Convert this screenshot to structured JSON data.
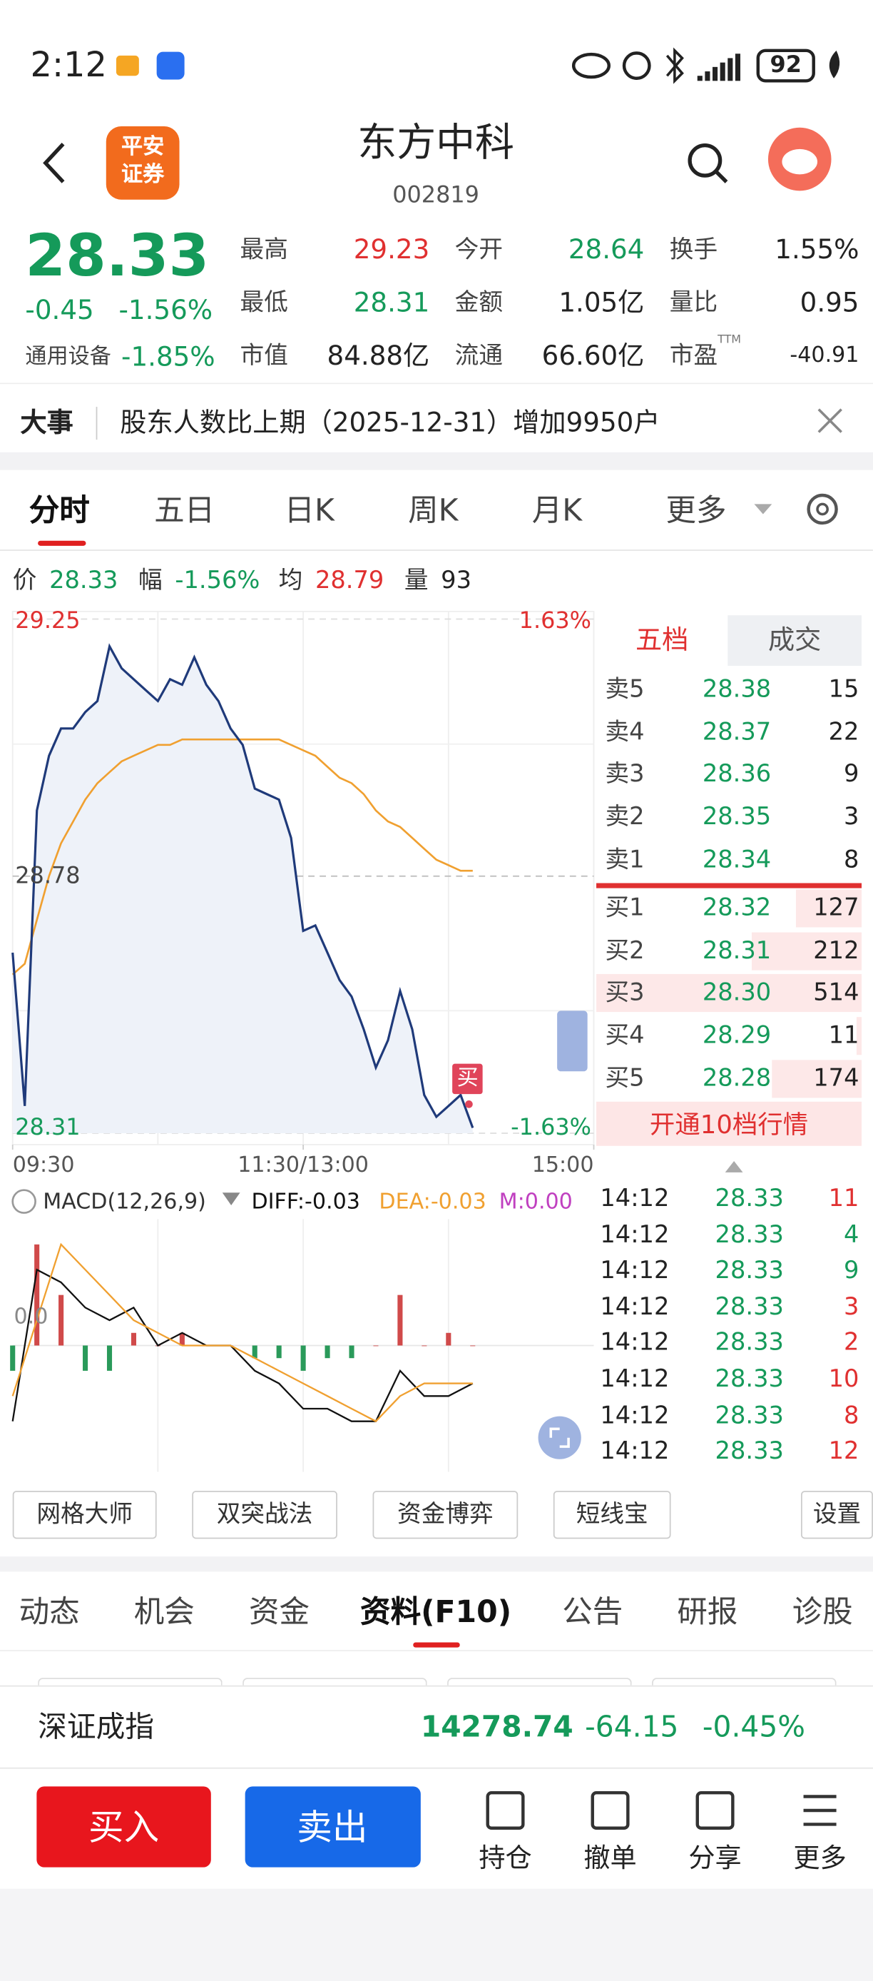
{
  "status_bar": {
    "time": "2:12",
    "battery": "92"
  },
  "header": {
    "logo": [
      "平安",
      "证券"
    ],
    "title": "东方中科",
    "code": "002819"
  },
  "quote": {
    "price": "28.33",
    "change": "-0.45",
    "change_pct": "-1.56%",
    "sector": "通用设备",
    "sector_change": "-1.85%",
    "color_up": "#e03030",
    "color_down": "#159a5a",
    "stats": [
      {
        "label": "最高",
        "value": "29.23",
        "color": "#e03030"
      },
      {
        "label": "今开",
        "value": "28.64",
        "color": "#159a5a"
      },
      {
        "label": "换手",
        "value": "1.55%",
        "color": "#222222"
      },
      {
        "label": "最低",
        "value": "28.31",
        "color": "#159a5a"
      },
      {
        "label": "金额",
        "value": "1.05亿",
        "color": "#222222"
      },
      {
        "label": "量比",
        "value": "0.95",
        "color": "#222222"
      },
      {
        "label": "市值",
        "value": "84.88亿",
        "color": "#222222"
      },
      {
        "label": "流通",
        "value": "66.60亿",
        "color": "#222222"
      },
      {
        "label": "市盈",
        "label_sup": "TTM",
        "value": "-40.91",
        "color": "#222222"
      }
    ]
  },
  "event": {
    "tag": "大事",
    "text": "股东人数比上期（2025-12-31）增加9950户"
  },
  "period_tabs": {
    "items": [
      "分时",
      "五日",
      "日K",
      "周K",
      "月K",
      "更多"
    ],
    "active": 0
  },
  "price_info": [
    {
      "label": "价",
      "value": "28.33",
      "color": "#159a5a"
    },
    {
      "label": "幅",
      "value": "-1.56%",
      "color": "#159a5a"
    },
    {
      "label": "均",
      "value": "28.79",
      "color": "#e03030"
    },
    {
      "label": "量",
      "value": "93",
      "color": "#222222"
    }
  ],
  "intraday_chart": {
    "type": "line",
    "x": [
      0,
      5,
      10,
      15,
      20,
      25,
      30,
      35,
      40,
      45,
      50,
      55,
      60,
      65,
      70,
      75,
      80,
      85,
      90,
      95,
      100,
      105,
      110,
      115,
      120,
      125,
      130,
      135,
      140,
      145,
      150,
      155,
      160,
      165,
      170,
      175,
      180,
      185,
      190
    ],
    "price": [
      28.64,
      28.36,
      28.9,
      29.0,
      29.05,
      29.05,
      29.08,
      29.1,
      29.2,
      29.16,
      29.14,
      29.12,
      29.1,
      29.14,
      29.13,
      29.18,
      29.13,
      29.1,
      29.05,
      29.02,
      28.94,
      28.93,
      28.92,
      28.85,
      28.68,
      28.69,
      28.64,
      28.59,
      28.56,
      28.5,
      28.43,
      28.48,
      28.57,
      28.5,
      28.38,
      28.34,
      28.36,
      28.38,
      28.32
    ],
    "average": [
      28.6,
      28.62,
      28.7,
      28.78,
      28.84,
      28.88,
      28.92,
      28.95,
      28.97,
      28.99,
      29.0,
      29.01,
      29.02,
      29.02,
      29.03,
      29.03,
      29.03,
      29.03,
      29.03,
      29.03,
      29.03,
      29.03,
      29.03,
      29.02,
      29.01,
      29.0,
      28.98,
      28.96,
      28.95,
      28.93,
      28.9,
      28.88,
      28.87,
      28.85,
      28.83,
      28.81,
      28.8,
      28.79,
      28.79
    ],
    "price_color": "#1f3a7a",
    "average_color": "#f0a030",
    "xlim": [
      0,
      240
    ],
    "xticks": [
      {
        "value": 0,
        "label": "09:30"
      },
      {
        "value": 120,
        "label": "11:30/13:00"
      },
      {
        "value": 240,
        "label": "15:00"
      }
    ],
    "ylim": [
      28.31,
      29.25
    ],
    "yticks": [
      29.25,
      28.78,
      28.31
    ],
    "y2lim": [
      -1.63,
      1.63
    ],
    "y2ticks": [
      {
        "value": 1.63,
        "label": "1.63%"
      },
      {
        "value": -1.63,
        "label": "-1.63%"
      }
    ],
    "annotation": "买"
  },
  "order_book": {
    "tabs": [
      "五档",
      "成交"
    ],
    "active": 0,
    "asks": [
      {
        "label": "卖5",
        "price": "28.38",
        "volume": 15
      },
      {
        "label": "卖4",
        "price": "28.37",
        "volume": 22
      },
      {
        "label": "卖3",
        "price": "28.36",
        "volume": 9
      },
      {
        "label": "卖2",
        "price": "28.35",
        "volume": 3
      },
      {
        "label": "卖1",
        "price": "28.34",
        "volume": 8
      }
    ],
    "bids": [
      {
        "label": "买1",
        "price": "28.32",
        "volume": 127
      },
      {
        "label": "买2",
        "price": "28.31",
        "volume": 212
      },
      {
        "label": "买3",
        "price": "28.30",
        "volume": 514
      },
      {
        "label": "买4",
        "price": "28.29",
        "volume": 11
      },
      {
        "label": "买5",
        "price": "28.28",
        "volume": 174
      }
    ],
    "upgrade": "开通10档行情"
  },
  "trades": [
    {
      "time": "14:12",
      "price": "28.33",
      "volume": "11",
      "color": "#e03030"
    },
    {
      "time": "14:12",
      "price": "28.33",
      "volume": "4",
      "color": "#159a5a"
    },
    {
      "time": "14:12",
      "price": "28.33",
      "volume": "9",
      "color": "#159a5a"
    },
    {
      "time": "14:12",
      "price": "28.33",
      "volume": "3",
      "color": "#e03030"
    },
    {
      "time": "14:12",
      "price": "28.33",
      "volume": "2",
      "color": "#e03030"
    },
    {
      "time": "14:12",
      "price": "28.33",
      "volume": "10",
      "color": "#e03030"
    },
    {
      "time": "14:12",
      "price": "28.33",
      "volume": "8",
      "color": "#e03030"
    },
    {
      "time": "14:12",
      "price": "28.33",
      "volume": "12",
      "color": "#e03030"
    }
  ],
  "macd": {
    "title": "MACD(12,26,9)",
    "diff": "DIFF:-0.03",
    "dea": "DEA:-0.03",
    "m": "M:0.00",
    "x": [
      0,
      10,
      20,
      30,
      40,
      50,
      60,
      70,
      80,
      90,
      100,
      110,
      120,
      130,
      140,
      150,
      160,
      170,
      180,
      190
    ],
    "diff_values": [
      -0.06,
      0.06,
      0.05,
      0.03,
      0.02,
      0.03,
      0.0,
      0.01,
      0.0,
      0.0,
      -0.02,
      -0.03,
      -0.05,
      -0.05,
      -0.06,
      -0.06,
      -0.02,
      -0.04,
      -0.04,
      -0.03
    ],
    "dea_values": [
      -0.04,
      0.02,
      0.08,
      0.06,
      0.04,
      0.02,
      0.01,
      0.0,
      0.0,
      0.0,
      -0.01,
      -0.02,
      -0.03,
      -0.04,
      -0.05,
      -0.06,
      -0.04,
      -0.03,
      -0.03,
      -0.03
    ],
    "m_values": [
      -0.02,
      0.08,
      0.04,
      -0.02,
      -0.02,
      0.01,
      0.0,
      0.01,
      0.0,
      0.0,
      -0.01,
      -0.01,
      -0.02,
      -0.01,
      -0.01,
      0.0,
      0.04,
      0.0,
      0.01,
      0.0
    ],
    "ylim": [
      -0.1,
      0.1
    ],
    "yticks": [
      {
        "value": 0,
        "label": "0.0"
      }
    ],
    "diff_color": "#111111",
    "dea_color": "#f0a030",
    "m_color": "#c040c0"
  },
  "tools": [
    "网格大师",
    "双突战法",
    "资金博弈",
    "短线宝",
    "设置"
  ],
  "info_tabs": {
    "items": [
      "动态",
      "机会",
      "资金",
      "资料(F10)",
      "公告",
      "研报",
      "诊股"
    ],
    "active": 3
  },
  "index_bar": {
    "name": "深证成指",
    "value": "14278.74",
    "change": "-64.15",
    "change_pct": "-0.45%"
  },
  "actions": {
    "buy": "买入",
    "sell": "卖出",
    "items": [
      "持仓",
      "撤单",
      "分享",
      "更多"
    ]
  }
}
